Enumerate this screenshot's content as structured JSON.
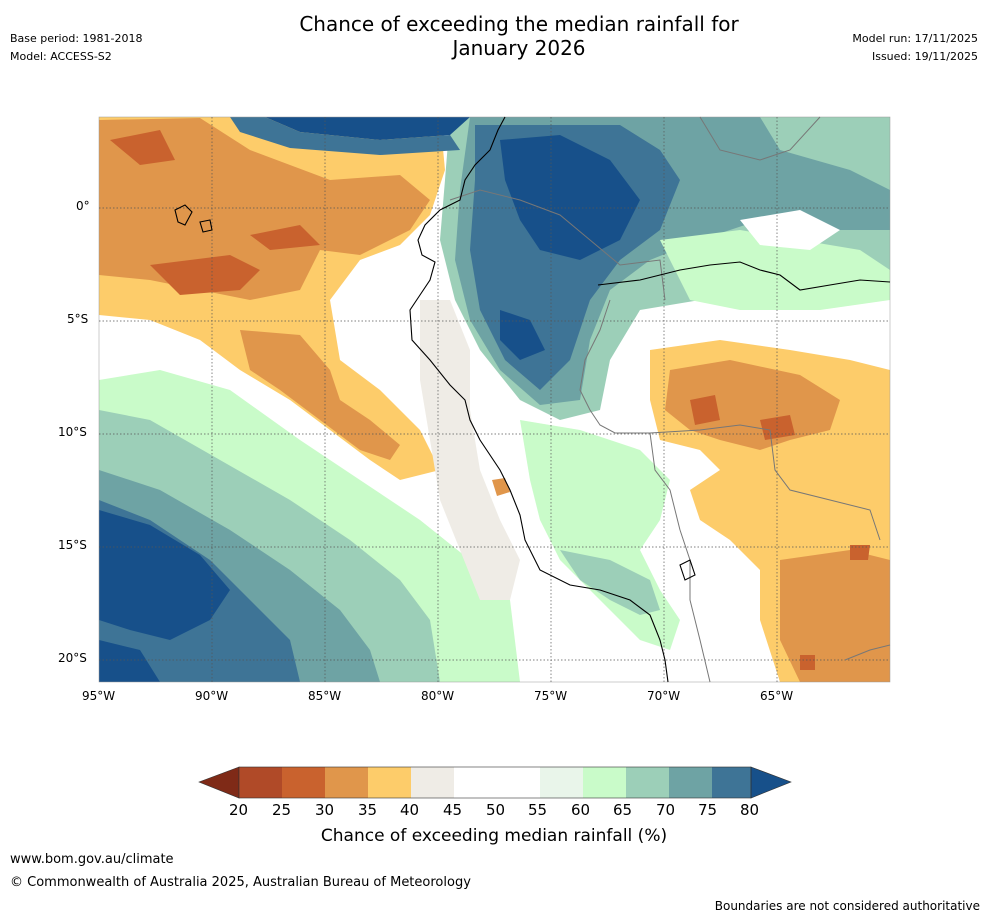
{
  "title_line1": "Chance of exceeding the median rainfall for",
  "title_line2": "January 2026",
  "meta": {
    "base_period": "Base period: 1981-2018",
    "model": "Model: ACCESS-S2",
    "model_run": "Model run: 17/11/2025",
    "issued": "Issued: 19/11/2025"
  },
  "map": {
    "lat_labels": [
      "0°",
      "5°S",
      "10°S",
      "15°S",
      "20°S"
    ],
    "lon_labels": [
      "95°W",
      "90°W",
      "85°W",
      "80°W",
      "75°W",
      "70°W",
      "65°W"
    ],
    "lat_values": [
      0,
      -5,
      -10,
      -15,
      -20
    ],
    "lon_values": [
      -95,
      -90,
      -85,
      -80,
      -75,
      -70,
      -65
    ],
    "extent": {
      "lon_min": -95,
      "lon_max": -60,
      "lat_min": -21,
      "lat_max": 4
    }
  },
  "colorbar": {
    "ticks": [
      "20",
      "25",
      "30",
      "35",
      "40",
      "45",
      "50",
      "55",
      "60",
      "65",
      "70",
      "75",
      "80"
    ],
    "colors": [
      "#7f2a17",
      "#b04a28",
      "#c9622e",
      "#e0964b",
      "#fdcc6a",
      "#efece6",
      "#ffffff",
      "#ffffff",
      "#e9f5ea",
      "#c9fbc9",
      "#9ccfb8",
      "#6ea3a4",
      "#3e7496",
      "#17508a"
    ],
    "title": "Chance of exceeding median rainfall (%)"
  },
  "footer": {
    "website": "www.bom.gov.au/climate",
    "copyright": "© Commonwealth of Australia 2025, Australian Bureau of Meteorology",
    "disclaimer": "Boundaries are not considered authoritative"
  }
}
